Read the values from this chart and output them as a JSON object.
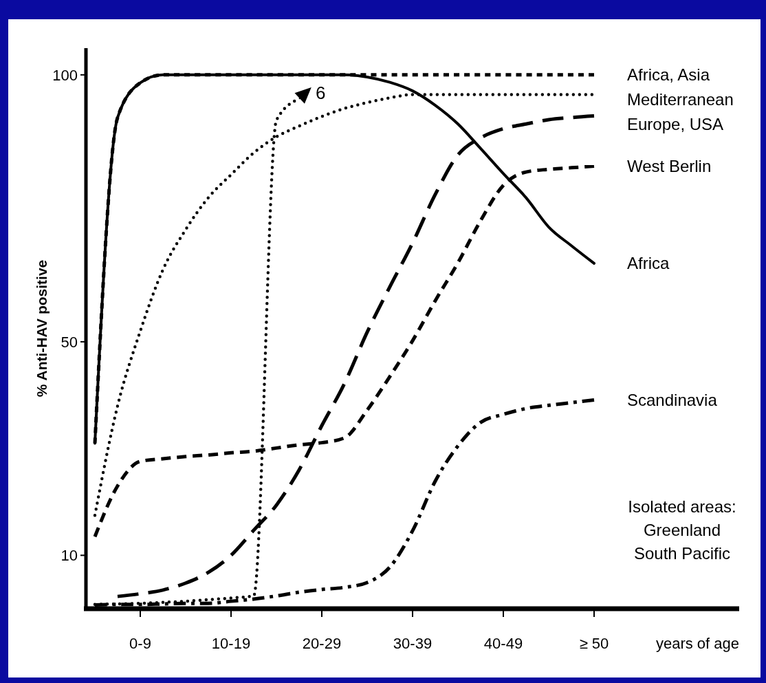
{
  "chart_data": {
    "type": "line",
    "xlabel": "years of age",
    "ylabel": "% Anti-HAV positive",
    "categories": [
      null,
      null,
      "0-9",
      null,
      null,
      null,
      "10-19",
      null,
      null,
      null,
      "20-29",
      null,
      null,
      null,
      "30-39",
      null,
      null,
      null,
      "40-49",
      null,
      null,
      null,
      "≥ 50",
      null,
      null,
      null,
      null,
      null,
      null
    ],
    "ylim": [
      0,
      105
    ],
    "yticks": [
      10,
      50,
      100
    ],
    "series": [
      {
        "name": "Africa, Asia",
        "color": "#000000",
        "line_style": "dashed",
        "values": [
          31,
          92,
          98.5,
          100,
          100,
          100,
          100,
          100,
          100,
          100,
          100,
          100,
          100,
          100,
          100,
          100,
          100,
          100,
          100,
          100,
          100,
          100,
          100,
          null,
          null,
          null,
          null,
          null,
          null
        ]
      },
      {
        "name": "Mediterranean",
        "color": "#000000",
        "line_style": "dotted",
        "values": [
          17.5,
          38,
          52,
          63.5,
          71,
          77,
          81.3,
          85.4,
          88.4,
          90.4,
          92.2,
          93.7,
          94.8,
          95.7,
          96.3,
          96.3,
          96.3,
          96.3,
          96.3,
          96.3,
          96.3,
          96.3,
          96.3,
          null,
          null,
          null,
          null,
          null,
          null
        ]
      },
      {
        "name": "Europe, USA",
        "color": "#000000",
        "line_style": "dashed",
        "values": [
          null,
          2.3,
          2.8,
          3.5,
          4.8,
          6.8,
          10,
          14.7,
          19.4,
          26,
          34.3,
          42.2,
          51.8,
          60.3,
          68.5,
          77.6,
          85,
          88.2,
          89.9,
          90.8,
          91.6,
          92,
          92.3,
          null,
          null,
          null,
          null,
          null,
          null
        ]
      },
      {
        "name": "West Berlin",
        "color": "#000000",
        "line_style": "dashed",
        "values": [
          13.5,
          23,
          27.6,
          28.1,
          28.5,
          28.8,
          29.2,
          29.5,
          30.1,
          30.7,
          31.1,
          32,
          37.2,
          43.5,
          50.2,
          57.7,
          64.8,
          72.7,
          79.3,
          81.8,
          82.3,
          82.6,
          82.9,
          null,
          null,
          null,
          null,
          null,
          null
        ]
      },
      {
        "name": "Africa",
        "color": "#000000",
        "line_style": "solid",
        "values": [
          31,
          92,
          98.5,
          100,
          100,
          100,
          100,
          100,
          100,
          100,
          100,
          100,
          99.6,
          98.6,
          97,
          94.3,
          90.8,
          86.2,
          81.5,
          77,
          71.5,
          68,
          64.7,
          null,
          null,
          null,
          null,
          null,
          null
        ]
      },
      {
        "name": "Scandinavia",
        "color": "#000000",
        "line_style": "dashed",
        "values": [
          0.7,
          0.8,
          0.8,
          0.9,
          1,
          1,
          1.4,
          1.8,
          2.4,
          3.1,
          3.6,
          4,
          4.9,
          7.8,
          14.6,
          23.9,
          30.5,
          34.9,
          36.4,
          37.5,
          38.1,
          38.6,
          39.1,
          null,
          null,
          null,
          null,
          null,
          null
        ]
      },
      {
        "color": "#000000",
        "line_style": "dotted",
        "values": [
          0.8,
          0.9,
          1,
          1.2,
          1.4,
          1.7,
          2,
          2.4,
          91.5,
          95.5,
          null,
          null,
          null,
          null,
          null,
          null,
          null,
          null,
          null,
          null,
          null,
          null,
          null,
          null,
          null,
          null,
          null,
          null,
          null
        ]
      }
    ],
    "annotations": [
      "6",
      "Isolated areas:\nGreenland\nSouth Pacific"
    ]
  }
}
